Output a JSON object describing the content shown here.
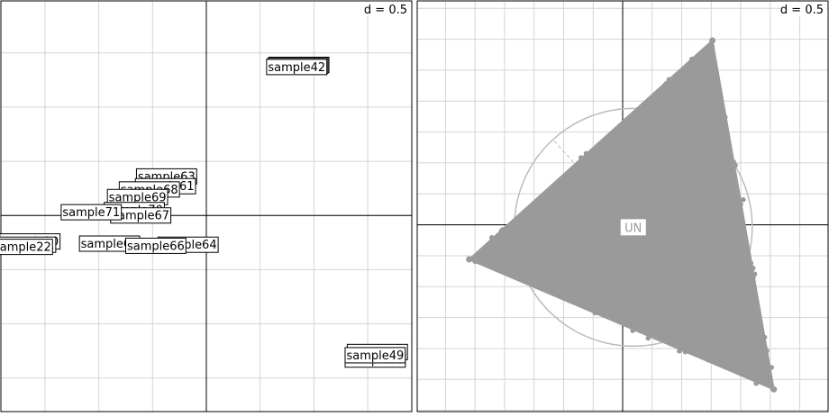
{
  "chart_data": [
    {
      "type": "scatter",
      "panel": "left",
      "scale_label": "d = 0.5",
      "grid": true,
      "axes_crosshair": true,
      "point_labels": [
        {
          "label": "sample40",
          "x": 0.86,
          "y": 1.39
        },
        {
          "label": "sample41",
          "x": 0.85,
          "y": 1.38
        },
        {
          "label": "sample42",
          "x": 0.84,
          "y": 1.37
        },
        {
          "label": "sample63",
          "x": -0.37,
          "y": 0.36
        },
        {
          "label": "sample61",
          "x": -0.38,
          "y": 0.27
        },
        {
          "label": "sample68",
          "x": -0.53,
          "y": 0.24
        },
        {
          "label": "sample69",
          "x": -0.64,
          "y": 0.17
        },
        {
          "label": "sample70",
          "x": -0.67,
          "y": 0.05
        },
        {
          "label": "sample67",
          "x": -0.61,
          "y": 0.0
        },
        {
          "label": "sample71",
          "x": -1.07,
          "y": 0.03
        },
        {
          "label": "sample20",
          "x": -1.64,
          "y": -0.24
        },
        {
          "label": "sample21",
          "x": -1.68,
          "y": -0.27
        },
        {
          "label": "sample22",
          "x": -1.71,
          "y": -0.29
        },
        {
          "label": "sample64",
          "x": -0.17,
          "y": -0.27
        },
        {
          "label": "sample65",
          "x": -0.9,
          "y": -0.26
        },
        {
          "label": "sample66",
          "x": -0.47,
          "y": -0.28
        },
        {
          "label": "sample48",
          "x": 1.59,
          "y": -1.26
        },
        {
          "label": "sample50",
          "x": 1.57,
          "y": -1.33
        },
        {
          "label": "sample49",
          "x": 1.57,
          "y": -1.29
        }
      ],
      "foreground_label": "sample49",
      "xlim": [
        -1.91,
        1.91
      ],
      "ylim": [
        -1.81,
        1.98
      ],
      "grid_step": 0.5
    },
    {
      "type": "scatter",
      "panel": "right",
      "scale_label": "d = 0.5",
      "grid": true,
      "axes_crosshair": true,
      "group_label": "UN",
      "color": "#9a9a9a",
      "circle_color": "#bcbcbc",
      "center": {
        "x": 0.09,
        "y": -0.02
      },
      "triangle_vertices": [
        {
          "x": 0.76,
          "y": 1.49
        },
        {
          "x": -1.3,
          "y": -0.28
        },
        {
          "x": 1.28,
          "y": -1.33
        }
      ],
      "xlim": [
        -1.74,
        1.74
      ],
      "ylim": [
        -1.51,
        1.81
      ],
      "grid_step": 0.25
    }
  ]
}
